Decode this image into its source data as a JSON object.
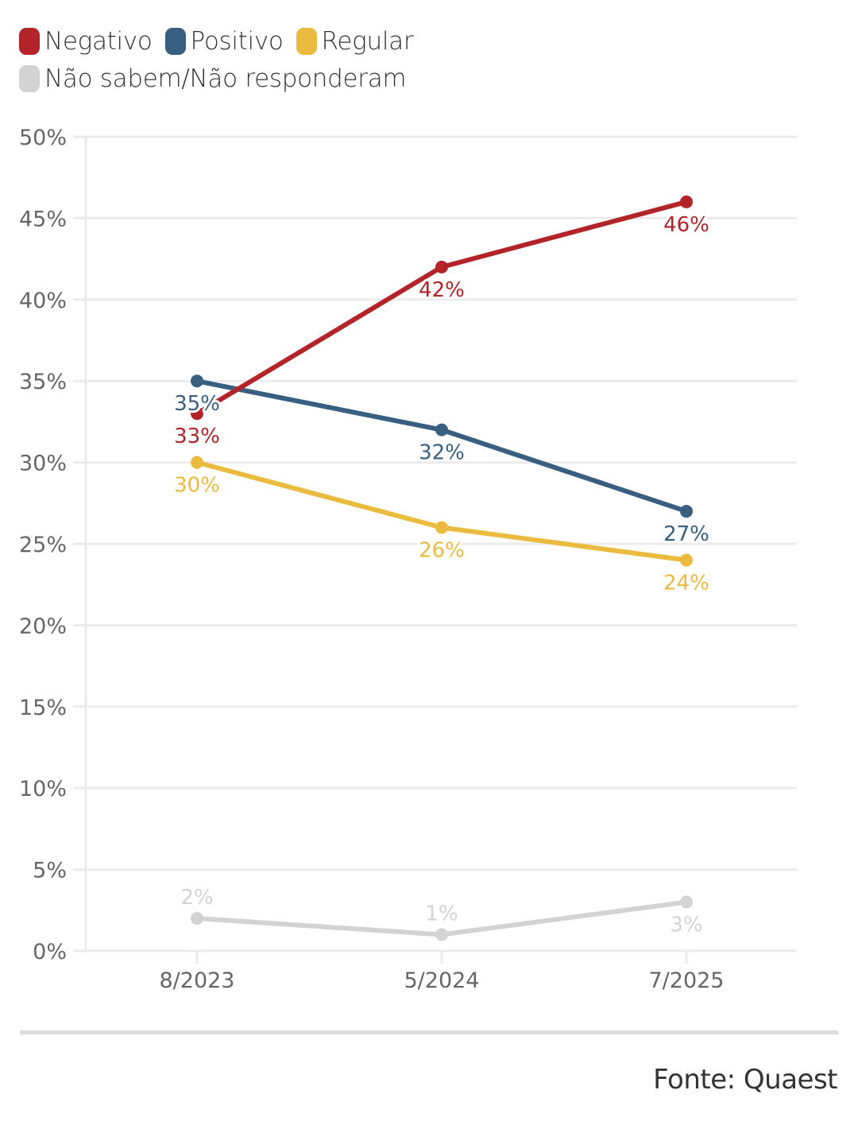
{
  "chart_data": {
    "type": "line",
    "title": "",
    "xlabel": "",
    "ylabel": "",
    "x": [
      "8/2023",
      "5/2024",
      "7/2025"
    ],
    "ylim": [
      0,
      50
    ],
    "yticks": [
      0,
      5,
      10,
      15,
      20,
      25,
      30,
      35,
      40,
      45,
      50
    ],
    "ytick_labels": [
      "0%",
      "5%",
      "10%",
      "15%",
      "20%",
      "25%",
      "30%",
      "35%",
      "40%",
      "45%",
      "50%"
    ],
    "grid": true,
    "legend_position": "top-left",
    "series": [
      {
        "name": "Negativo",
        "color": "#b22428",
        "values": [
          33,
          42,
          46
        ],
        "labels": [
          "33%",
          "42%",
          "46%"
        ],
        "label_pos": [
          "below",
          "below",
          "below"
        ]
      },
      {
        "name": "Positivo",
        "color": "#385f80",
        "values": [
          35,
          32,
          27
        ],
        "labels": [
          "35%",
          "32%",
          "27%"
        ],
        "label_pos": [
          "below",
          "below",
          "below"
        ]
      },
      {
        "name": "Regular",
        "color": "#eabb3e",
        "values": [
          30,
          26,
          24
        ],
        "labels": [
          "30%",
          "26%",
          "24%"
        ],
        "label_pos": [
          "below",
          "below",
          "below"
        ]
      },
      {
        "name": "Não sabem/Não responderam",
        "color": "#d3d3d3",
        "values": [
          2,
          1,
          3
        ],
        "labels": [
          "2%",
          "1%",
          "3%"
        ],
        "label_pos": [
          "above",
          "above",
          "below"
        ]
      }
    ]
  },
  "legend": {
    "items": [
      {
        "label": "Negativo",
        "color": "#b22428"
      },
      {
        "label": "Positivo",
        "color": "#385f80"
      },
      {
        "label": "Regular",
        "color": "#eabb3e"
      },
      {
        "label": "Não sabem/Não responderam",
        "color": "#d3d3d3"
      }
    ]
  },
  "footer": {
    "source": "Fonte: Quaest"
  }
}
